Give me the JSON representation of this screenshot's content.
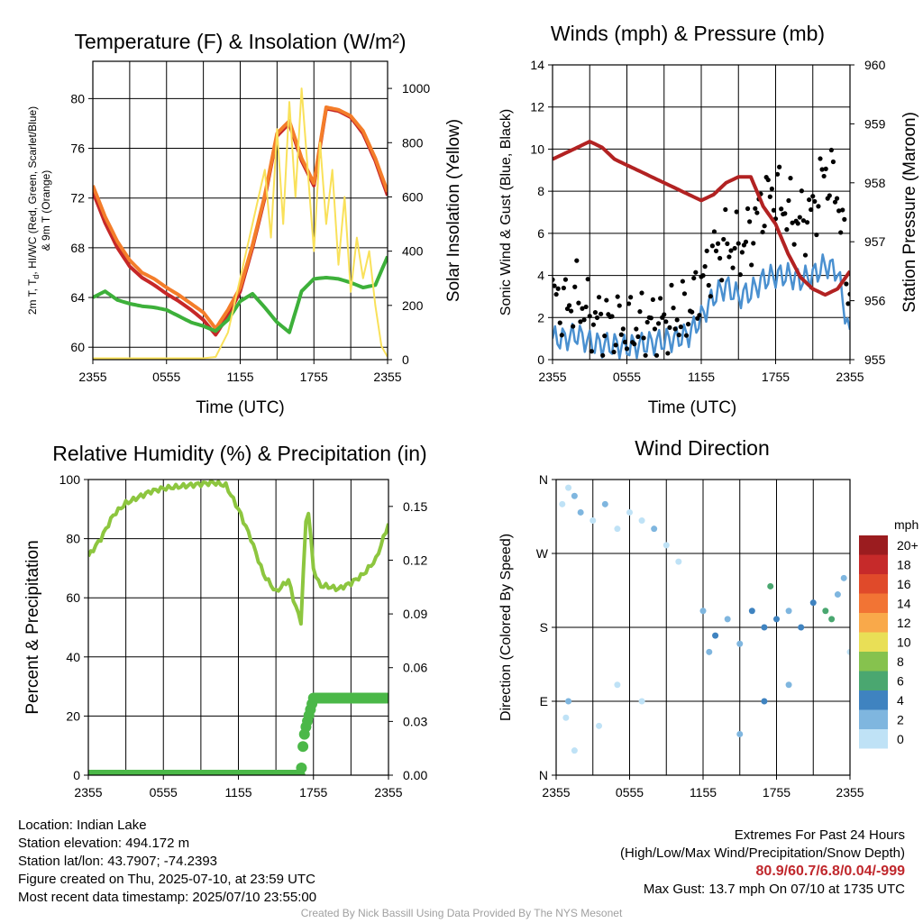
{
  "chart_data": [
    {
      "type": "line",
      "title": "Temperature (F) & Insolation (W/m²)",
      "xlabel": "Time (UTC)",
      "ylabel": "2m T, Tₐ, HI/WC (Red, Green, Scarlet/Blue) & 9m T (Orange)",
      "ylabel_line1": "2m T, T",
      "ylabel_sub": "d",
      "ylabel_line1_rest": ", HI/WC (Red, Green, Scarlet/Blue)",
      "ylabel_line2": "& 9m T (Orange)",
      "y2label": "Solar Insolation (Yellow)",
      "x_ticks": [
        "2355",
        "0555",
        "1155",
        "1755",
        "2355"
      ],
      "y_ticks": [
        "60",
        "64",
        "68",
        "72",
        "76",
        "80"
      ],
      "y2_ticks": [
        "0",
        "200",
        "400",
        "600",
        "800",
        "1000"
      ],
      "ylim": [
        59,
        83
      ],
      "y2lim": [
        0,
        1100
      ],
      "x_hours": [
        0,
        24
      ],
      "grid": true,
      "series": [
        {
          "key": "temp_2m",
          "color": "#c62828",
          "x": [
            0,
            1,
            2,
            3,
            4,
            5,
            6,
            7,
            8,
            9,
            10,
            11,
            12,
            13,
            14,
            15,
            16,
            17,
            18,
            19,
            20,
            21,
            22,
            23,
            24
          ],
          "values": [
            72.5,
            70,
            68,
            66.5,
            65.6,
            65,
            64.3,
            63.7,
            63,
            62.2,
            61,
            62.5,
            64.5,
            68,
            72,
            77,
            78,
            75,
            73,
            79.2,
            79,
            78.5,
            77.2,
            75,
            72.2
          ]
        },
        {
          "key": "temp_9m",
          "color": "#f47d2a",
          "x": [
            0,
            1,
            2,
            3,
            4,
            5,
            6,
            7,
            8,
            9,
            10,
            11,
            12,
            13,
            14,
            15,
            16,
            17,
            18,
            19,
            20,
            21,
            22,
            23,
            24
          ],
          "values": [
            73,
            70.5,
            68.5,
            67,
            66,
            65.5,
            64.8,
            64.2,
            63.5,
            62.8,
            61.5,
            63,
            64.8,
            68.2,
            72.2,
            77.2,
            78.2,
            75.2,
            73.2,
            79.3,
            79.1,
            78.6,
            77.4,
            75.2,
            72.5
          ]
        },
        {
          "key": "dewpoint",
          "color": "#3db03a",
          "x": [
            0,
            1,
            2,
            3,
            4,
            5,
            6,
            7,
            8,
            9,
            10,
            11,
            12,
            13,
            14,
            15,
            16,
            17,
            18,
            19,
            20,
            21,
            22,
            23,
            24
          ],
          "values": [
            64,
            64.5,
            63.8,
            63.5,
            63.3,
            63.2,
            63,
            62.5,
            62,
            61.7,
            61.3,
            62.2,
            63.7,
            64.3,
            63.2,
            62,
            61.2,
            64.5,
            65.5,
            65.6,
            65.5,
            65.2,
            64.8,
            65,
            67.3
          ]
        },
        {
          "key": "insolation",
          "color": "#f9e15a",
          "axis": "y2",
          "x": [
            0,
            2,
            4,
            6,
            8,
            9,
            10,
            11,
            12,
            13,
            14,
            14.5,
            15,
            15.5,
            16,
            16.5,
            17,
            17.5,
            18,
            18.5,
            19,
            19.5,
            20,
            20.5,
            21,
            21.5,
            22,
            22.5,
            23,
            23.5,
            24
          ],
          "values": [
            5,
            5,
            5,
            5,
            5,
            5,
            10,
            100,
            300,
            500,
            700,
            450,
            850,
            500,
            950,
            600,
            1000,
            700,
            400,
            800,
            500,
            700,
            350,
            600,
            250,
            450,
            300,
            400,
            200,
            50,
            10
          ]
        }
      ]
    },
    {
      "type": "line",
      "title": "Winds (mph) & Pressure (mb)",
      "xlabel": "Time (UTC)",
      "ylabel": "Sonic Wind & Gust (Blue, Black)",
      "y2label": "Station Pressure (Maroon)",
      "x_ticks": [
        "2355",
        "0555",
        "1155",
        "1755",
        "2355"
      ],
      "y_ticks": [
        "0",
        "2",
        "4",
        "6",
        "8",
        "10",
        "12",
        "14"
      ],
      "y2_ticks": [
        "955",
        "956",
        "957",
        "958",
        "959",
        "960"
      ],
      "ylim": [
        0,
        14
      ],
      "y2lim": [
        955,
        960
      ],
      "x_hours": [
        0,
        24
      ],
      "grid": true,
      "series": [
        {
          "key": "sonic_wind",
          "color": "#4a90d0",
          "x": [
            0,
            1,
            2,
            3,
            4,
            5,
            6,
            7,
            8,
            9,
            10,
            11,
            12,
            13,
            14,
            15,
            16,
            17,
            18,
            19,
            20,
            21,
            22,
            23,
            24
          ],
          "values": [
            1,
            1,
            1.2,
            0.8,
            0.7,
            0.7,
            0.6,
            0.7,
            0.8,
            0.9,
            1,
            1.2,
            2,
            3,
            3.5,
            3,
            3.2,
            3.8,
            4,
            4,
            3.8,
            4,
            4.5,
            4.2,
            1
          ]
        },
        {
          "key": "gust",
          "color": "#000000",
          "marker": "dot",
          "x": [
            0,
            1,
            2,
            3,
            4,
            5,
            6,
            7,
            8,
            9,
            10,
            11,
            12,
            13,
            14,
            15,
            16,
            17,
            18,
            19,
            20,
            21,
            22,
            23,
            24
          ],
          "values": [
            3,
            2.5,
            3,
            2,
            1.8,
            1.7,
            1.5,
            1.6,
            1.7,
            1.8,
            2,
            2.3,
            3.5,
            5,
            5.5,
            5.2,
            6,
            7.5,
            8,
            7,
            6.5,
            7,
            9,
            8,
            3
          ]
        },
        {
          "key": "pressure",
          "color": "#b22222",
          "axis": "y2",
          "x": [
            0,
            1,
            2,
            3,
            4,
            5,
            6,
            7,
            8,
            9,
            10,
            11,
            12,
            13,
            14,
            15,
            16,
            17,
            18,
            19,
            20,
            21,
            22,
            23,
            24
          ],
          "values": [
            958.4,
            958.5,
            958.6,
            958.7,
            958.6,
            958.4,
            958.3,
            958.2,
            958.1,
            958,
            957.9,
            957.8,
            957.7,
            957.8,
            958,
            958.1,
            958.1,
            957.6,
            957.3,
            956.8,
            956.4,
            956.2,
            956.1,
            956.2,
            956.5
          ]
        }
      ]
    },
    {
      "type": "line",
      "title": "Relative Humidity (%) & Precipitation (in)",
      "ylabel": "Percent & Precipitation",
      "x_ticks": [
        "2355",
        "0555",
        "1155",
        "1755",
        "2355"
      ],
      "y_ticks": [
        "0",
        "20",
        "40",
        "60",
        "80",
        "100"
      ],
      "y2_ticks": [
        "0.00",
        "0.03",
        "0.06",
        "0.09",
        "0.12",
        "0.15"
      ],
      "ylim": [
        0,
        100
      ],
      "y2lim": [
        0,
        0.165
      ],
      "x_hours": [
        0,
        24
      ],
      "grid": true,
      "series": [
        {
          "key": "rh",
          "color": "#8dc63f",
          "x": [
            0,
            1,
            2,
            3,
            4,
            5,
            6,
            7,
            8,
            9,
            10,
            11,
            12,
            13,
            14,
            15,
            16,
            16.5,
            17,
            17.5,
            18,
            18.5,
            19,
            20,
            21,
            22,
            23,
            24
          ],
          "values": [
            74,
            80,
            88,
            92,
            94,
            96,
            97,
            97.5,
            98,
            98.5,
            99,
            98,
            90,
            80,
            68,
            62,
            66,
            58,
            52,
            94,
            70,
            64,
            64,
            63,
            65,
            68,
            73,
            85
          ]
        },
        {
          "key": "precip",
          "color": "#4bb848",
          "marker": "dot",
          "axis": "y2",
          "x": [
            0,
            2,
            4,
            6,
            8,
            10,
            12,
            14,
            16,
            17,
            17.2,
            17.4,
            18,
            19,
            20,
            21,
            22,
            23,
            24
          ],
          "values": [
            0,
            0,
            0,
            0,
            0,
            0,
            0,
            0,
            0,
            0,
            0.02,
            0.027,
            0.043,
            0.043,
            0.043,
            0.043,
            0.043,
            0.043,
            0.043
          ]
        }
      ]
    },
    {
      "type": "scatter",
      "title": "Wind Direction",
      "ylabel": "Direction (Colored By Speed)",
      "x_ticks": [
        "2355",
        "0555",
        "1155",
        "1755",
        "2355"
      ],
      "y_ticks": [
        "N",
        "E",
        "S",
        "W",
        "N"
      ],
      "ylim": [
        0,
        360
      ],
      "x_hours": [
        0,
        24
      ],
      "grid": true,
      "legend_title": "mph",
      "legend": [
        {
          "label": "20+",
          "color": "#9b1c1f"
        },
        {
          "label": "18",
          "color": "#c62a2a"
        },
        {
          "label": "16",
          "color": "#e04a2a"
        },
        {
          "label": "14",
          "color": "#f27434"
        },
        {
          "label": "12",
          "color": "#f9a94a"
        },
        {
          "label": "10",
          "color": "#e9df56"
        },
        {
          "label": "8",
          "color": "#86c24e"
        },
        {
          "label": "6",
          "color": "#4aa770"
        },
        {
          "label": "4",
          "color": "#3f83c0"
        },
        {
          "label": "2",
          "color": "#7fb6df"
        },
        {
          "label": "0",
          "color": "#bfe2f6"
        }
      ],
      "legend_placement": "right",
      "points": [
        {
          "x": 0.5,
          "dir": 330,
          "speed": 1
        },
        {
          "x": 1,
          "dir": 350,
          "speed": 1
        },
        {
          "x": 1.5,
          "dir": 340,
          "speed": 2
        },
        {
          "x": 2,
          "dir": 320,
          "speed": 2
        },
        {
          "x": 3,
          "dir": 310,
          "speed": 1
        },
        {
          "x": 4,
          "dir": 330,
          "speed": 2
        },
        {
          "x": 5,
          "dir": 300,
          "speed": 1
        },
        {
          "x": 6,
          "dir": 320,
          "speed": 1
        },
        {
          "x": 7,
          "dir": 310,
          "speed": 1
        },
        {
          "x": 8,
          "dir": 300,
          "speed": 2
        },
        {
          "x": 9,
          "dir": 280,
          "speed": 1
        },
        {
          "x": 10,
          "dir": 260,
          "speed": 1
        },
        {
          "x": 1,
          "dir": 90,
          "speed": 2
        },
        {
          "x": 0.8,
          "dir": 70,
          "speed": 1
        },
        {
          "x": 1.5,
          "dir": 30,
          "speed": 1
        },
        {
          "x": 3.5,
          "dir": 60,
          "speed": 1
        },
        {
          "x": 5,
          "dir": 110,
          "speed": 1
        },
        {
          "x": 7,
          "dir": 90,
          "speed": 1
        },
        {
          "x": 12,
          "dir": 200,
          "speed": 2
        },
        {
          "x": 12.5,
          "dir": 150,
          "speed": 3
        },
        {
          "x": 13,
          "dir": 170,
          "speed": 4
        },
        {
          "x": 14,
          "dir": 190,
          "speed": 3
        },
        {
          "x": 15,
          "dir": 160,
          "speed": 2
        },
        {
          "x": 16,
          "dir": 200,
          "speed": 4
        },
        {
          "x": 17,
          "dir": 180,
          "speed": 5
        },
        {
          "x": 17.5,
          "dir": 230,
          "speed": 7
        },
        {
          "x": 18,
          "dir": 190,
          "speed": 4
        },
        {
          "x": 19,
          "dir": 200,
          "speed": 3
        },
        {
          "x": 20,
          "dir": 180,
          "speed": 4
        },
        {
          "x": 21,
          "dir": 210,
          "speed": 5
        },
        {
          "x": 22,
          "dir": 200,
          "speed": 7
        },
        {
          "x": 22.5,
          "dir": 190,
          "speed": 6
        },
        {
          "x": 23,
          "dir": 220,
          "speed": 3
        },
        {
          "x": 17,
          "dir": 90,
          "speed": 4
        },
        {
          "x": 15,
          "dir": 50,
          "speed": 3
        },
        {
          "x": 19,
          "dir": 110,
          "speed": 2
        },
        {
          "x": 23.5,
          "dir": 240,
          "speed": 2
        },
        {
          "x": 24,
          "dir": 150,
          "speed": 1
        }
      ]
    }
  ],
  "info_left": [
    "Location: Indian Lake",
    "Station elevation: 494.172 m",
    "Station lat/lon: 43.7907; -74.2393",
    "Figure created on Thu, 2025-07-10, at 23:59 UTC",
    "Most recent data timestamp: 2025/07/10 23:55:00"
  ],
  "info_right": {
    "line1": "Extremes For Past 24 Hours",
    "line2": "(High/Low/Max Wind/Precipitation/Snow Depth)",
    "extremes": "80.9/60.7/6.8/0.04/-999",
    "max_gust": "Max Gust: 13.7 mph On 07/10 at 1735 UTC"
  },
  "credit": "Created By Nick Bassill Using Data Provided By The NYS Mesonet"
}
